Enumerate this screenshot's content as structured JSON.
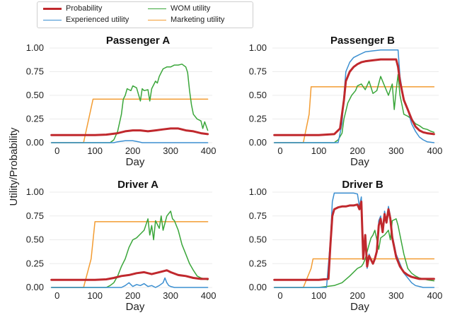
{
  "legend": [
    {
      "key": "probability",
      "label": "Probability",
      "color": "#c0282d",
      "width": 3
    },
    {
      "key": "experienced",
      "label": "Experienced utility",
      "color": "#3b8fd1",
      "width": 1.5
    },
    {
      "key": "wom",
      "label": "WOM utility",
      "color": "#3aa63a",
      "width": 1.5
    },
    {
      "key": "marketing",
      "label": "Marketing utility",
      "color": "#f39c32",
      "width": 1.5
    }
  ],
  "shared_ylabel": "Utility/Probability",
  "chart_data": [
    {
      "type": "line",
      "title": "Passenger A",
      "xlabel": "Day",
      "xlim": [
        -20,
        410
      ],
      "ylim": [
        0,
        1.0
      ],
      "xticks": [
        0,
        100,
        200,
        300,
        400
      ],
      "yticks": [
        "0.00",
        "0.25",
        "0.50",
        "0.75",
        "1.00"
      ],
      "grid": "horizontal",
      "series": [
        {
          "name": "Marketing utility",
          "x": [
            -15,
            70,
            95,
            100,
            398
          ],
          "y": [
            0.0,
            0.0,
            0.46,
            0.46,
            0.46
          ]
        },
        {
          "name": "WOM utility",
          "x": [
            -15,
            140,
            150,
            160,
            170,
            175,
            180,
            185,
            190,
            195,
            200,
            210,
            220,
            225,
            230,
            240,
            245,
            250,
            260,
            265,
            270,
            275,
            280,
            290,
            300,
            310,
            320,
            330,
            340,
            345,
            350,
            355,
            360,
            370,
            380,
            385,
            390,
            398
          ],
          "y": [
            0.0,
            0.0,
            0.03,
            0.12,
            0.3,
            0.46,
            0.5,
            0.57,
            0.56,
            0.55,
            0.6,
            0.58,
            0.44,
            0.57,
            0.55,
            0.56,
            0.44,
            0.57,
            0.65,
            0.63,
            0.7,
            0.74,
            0.78,
            0.8,
            0.8,
            0.82,
            0.82,
            0.83,
            0.8,
            0.74,
            0.55,
            0.4,
            0.3,
            0.25,
            0.23,
            0.15,
            0.22,
            0.13
          ]
        },
        {
          "name": "Experienced utility",
          "x": [
            -15,
            150,
            160,
            170,
            180,
            200,
            215,
            225,
            398
          ],
          "y": [
            0.0,
            0.0,
            0.01,
            0.015,
            0.02,
            0.02,
            0.01,
            0.0,
            0.0
          ]
        },
        {
          "name": "Probability",
          "x": [
            -15,
            100,
            130,
            160,
            180,
            200,
            220,
            240,
            260,
            280,
            300,
            320,
            340,
            360,
            380,
            398
          ],
          "y": [
            0.08,
            0.08,
            0.085,
            0.1,
            0.12,
            0.13,
            0.13,
            0.12,
            0.13,
            0.14,
            0.15,
            0.15,
            0.13,
            0.12,
            0.1,
            0.09
          ]
        }
      ]
    },
    {
      "type": "line",
      "title": "Passenger B",
      "xlabel": "Day",
      "xlim": [
        -20,
        410
      ],
      "ylim": [
        0,
        1.0
      ],
      "xticks": [
        0,
        100,
        200,
        300,
        400
      ],
      "yticks": [
        "0.00",
        "0.25",
        "0.50",
        "0.75",
        "1.00"
      ],
      "grid": "horizontal",
      "series": [
        {
          "name": "Marketing utility",
          "x": [
            -15,
            60,
            75,
            80,
            398
          ],
          "y": [
            0.0,
            0.0,
            0.3,
            0.59,
            0.59
          ]
        },
        {
          "name": "WOM utility",
          "x": [
            -15,
            140,
            150,
            160,
            165,
            175,
            185,
            195,
            200,
            210,
            220,
            230,
            240,
            250,
            260,
            270,
            280,
            290,
            295,
            300,
            305,
            310,
            315,
            320,
            330,
            340,
            350,
            360,
            370,
            380,
            390,
            398
          ],
          "y": [
            0.0,
            0.0,
            0.03,
            0.1,
            0.25,
            0.42,
            0.5,
            0.55,
            0.6,
            0.62,
            0.56,
            0.65,
            0.52,
            0.55,
            0.7,
            0.6,
            0.5,
            0.62,
            0.35,
            0.55,
            0.72,
            0.5,
            0.4,
            0.3,
            0.28,
            0.25,
            0.2,
            0.18,
            0.15,
            0.14,
            0.12,
            0.11
          ]
        },
        {
          "name": "Experienced utility",
          "x": [
            -15,
            150,
            160,
            165,
            170,
            180,
            190,
            200,
            210,
            220,
            240,
            260,
            280,
            300,
            305,
            310,
            320,
            330,
            340,
            350,
            360,
            370,
            380,
            398
          ],
          "y": [
            0.0,
            0.0,
            0.2,
            0.5,
            0.75,
            0.85,
            0.9,
            0.92,
            0.94,
            0.96,
            0.97,
            0.98,
            0.98,
            0.98,
            0.98,
            0.7,
            0.45,
            0.35,
            0.2,
            0.12,
            0.06,
            0.03,
            0.01,
            0.0
          ]
        },
        {
          "name": "Probability",
          "x": [
            -15,
            100,
            140,
            155,
            165,
            170,
            180,
            190,
            200,
            210,
            220,
            240,
            260,
            280,
            300,
            305,
            310,
            320,
            330,
            340,
            350,
            360,
            370,
            380,
            398
          ],
          "y": [
            0.08,
            0.08,
            0.09,
            0.15,
            0.45,
            0.65,
            0.75,
            0.8,
            0.83,
            0.85,
            0.86,
            0.87,
            0.88,
            0.88,
            0.88,
            0.8,
            0.65,
            0.45,
            0.35,
            0.25,
            0.17,
            0.13,
            0.11,
            0.1,
            0.09
          ]
        }
      ]
    },
    {
      "type": "line",
      "title": "Driver A",
      "xlabel": "Day",
      "xlim": [
        -20,
        410
      ],
      "ylim": [
        0,
        1.0
      ],
      "xticks": [
        0,
        100,
        200,
        300,
        400
      ],
      "yticks": [
        "0.00",
        "0.25",
        "0.50",
        "0.75",
        "1.00"
      ],
      "grid": "horizontal",
      "series": [
        {
          "name": "Marketing utility",
          "x": [
            -15,
            70,
            90,
            100,
            398
          ],
          "y": [
            0.0,
            0.0,
            0.3,
            0.69,
            0.69
          ]
        },
        {
          "name": "WOM utility",
          "x": [
            -15,
            130,
            140,
            150,
            160,
            170,
            180,
            190,
            200,
            210,
            220,
            230,
            240,
            245,
            250,
            255,
            260,
            270,
            275,
            280,
            290,
            300,
            305,
            310,
            320,
            330,
            340,
            350,
            360,
            370,
            380,
            398
          ],
          "y": [
            0.0,
            0.0,
            0.02,
            0.05,
            0.12,
            0.22,
            0.3,
            0.42,
            0.5,
            0.52,
            0.56,
            0.6,
            0.72,
            0.55,
            0.65,
            0.5,
            0.7,
            0.62,
            0.75,
            0.6,
            0.75,
            0.8,
            0.72,
            0.7,
            0.6,
            0.45,
            0.35,
            0.25,
            0.18,
            0.12,
            0.1,
            0.08
          ]
        },
        {
          "name": "Experienced utility",
          "x": [
            -15,
            170,
            180,
            190,
            200,
            210,
            220,
            230,
            240,
            250,
            260,
            270,
            280,
            285,
            290,
            295,
            300,
            310,
            320,
            398
          ],
          "y": [
            0.0,
            0.0,
            0.02,
            0.05,
            0.01,
            0.03,
            0.02,
            0.04,
            0.01,
            0.02,
            0.0,
            0.02,
            0.05,
            0.1,
            0.05,
            0.02,
            0.01,
            0.0,
            0.0,
            0.0
          ]
        },
        {
          "name": "Probability",
          "x": [
            -15,
            100,
            130,
            150,
            170,
            190,
            210,
            230,
            250,
            270,
            280,
            290,
            300,
            320,
            340,
            360,
            380,
            398
          ],
          "y": [
            0.08,
            0.08,
            0.085,
            0.1,
            0.12,
            0.13,
            0.15,
            0.16,
            0.14,
            0.16,
            0.17,
            0.18,
            0.16,
            0.13,
            0.12,
            0.1,
            0.09,
            0.09
          ]
        }
      ]
    },
    {
      "type": "line",
      "title": "Driver B",
      "xlabel": "Day",
      "xlim": [
        -20,
        410
      ],
      "ylim": [
        0,
        1.0
      ],
      "xticks": [
        0,
        100,
        200,
        300,
        400
      ],
      "yticks": [
        "0.00",
        "0.25",
        "0.50",
        "0.75",
        "1.00"
      ],
      "grid": "horizontal",
      "series": [
        {
          "name": "Marketing utility",
          "x": [
            -15,
            60,
            80,
            85,
            398
          ],
          "y": [
            0.0,
            0.0,
            0.2,
            0.3,
            0.3
          ]
        },
        {
          "name": "WOM utility",
          "x": [
            -15,
            100,
            120,
            140,
            160,
            180,
            200,
            210,
            215,
            220,
            230,
            235,
            240,
            245,
            250,
            255,
            260,
            270,
            280,
            285,
            290,
            300,
            305,
            310,
            320,
            330,
            340,
            350,
            360,
            380,
            398
          ],
          "y": [
            0.0,
            0.0,
            0.01,
            0.02,
            0.05,
            0.12,
            0.2,
            0.22,
            0.25,
            0.3,
            0.45,
            0.52,
            0.55,
            0.6,
            0.5,
            0.4,
            0.52,
            0.55,
            0.6,
            0.5,
            0.7,
            0.72,
            0.65,
            0.55,
            0.35,
            0.2,
            0.15,
            0.12,
            0.1,
            0.08,
            0.07
          ]
        },
        {
          "name": "Experienced utility",
          "x": [
            -15,
            120,
            130,
            135,
            140,
            150,
            160,
            170,
            180,
            190,
            200,
            205,
            210,
            215,
            220,
            225,
            230,
            240,
            245,
            250,
            255,
            260,
            265,
            270,
            275,
            280,
            285,
            290,
            295,
            300,
            310,
            320,
            330,
            340,
            350,
            360,
            370,
            398
          ],
          "y": [
            0.0,
            0.0,
            0.5,
            0.9,
            0.99,
            0.99,
            0.99,
            0.99,
            0.99,
            0.99,
            0.98,
            0.85,
            0.95,
            0.3,
            0.55,
            0.2,
            0.35,
            0.25,
            0.3,
            0.4,
            0.7,
            0.75,
            0.6,
            0.8,
            0.7,
            0.85,
            0.75,
            0.55,
            0.45,
            0.35,
            0.25,
            0.15,
            0.1,
            0.05,
            0.02,
            0.01,
            0.0,
            0.0
          ]
        },
        {
          "name": "Probability",
          "x": [
            -15,
            100,
            125,
            130,
            135,
            140,
            150,
            160,
            170,
            180,
            190,
            200,
            205,
            210,
            215,
            220,
            225,
            230,
            240,
            245,
            250,
            255,
            260,
            265,
            270,
            275,
            280,
            285,
            290,
            295,
            300,
            310,
            320,
            330,
            340,
            350,
            360,
            370,
            380,
            398
          ],
          "y": [
            0.08,
            0.08,
            0.09,
            0.45,
            0.75,
            0.82,
            0.84,
            0.85,
            0.85,
            0.86,
            0.86,
            0.87,
            0.82,
            0.9,
            0.3,
            0.55,
            0.22,
            0.33,
            0.25,
            0.3,
            0.38,
            0.65,
            0.72,
            0.58,
            0.77,
            0.68,
            0.82,
            0.72,
            0.52,
            0.42,
            0.32,
            0.22,
            0.16,
            0.13,
            0.11,
            0.1,
            0.09,
            0.09,
            0.09,
            0.09
          ]
        }
      ]
    }
  ]
}
